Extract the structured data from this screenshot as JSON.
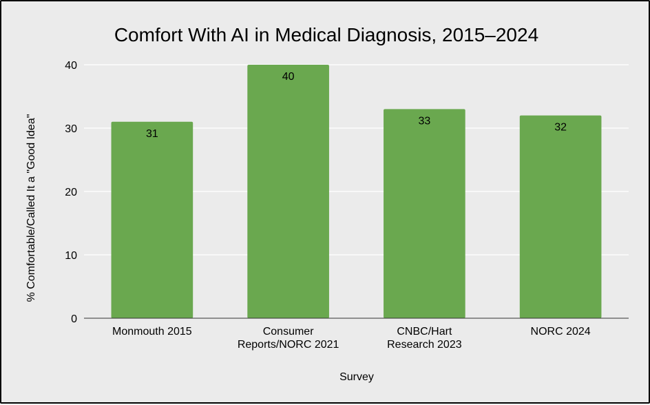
{
  "chart_data": {
    "type": "bar",
    "title": "Comfort With AI in Medical Diagnosis, 2015–2024",
    "xlabel": "Survey",
    "ylabel": "% Comfortable/Called It a \"Good Idea\"",
    "categories": [
      [
        "Monmouth 2015"
      ],
      [
        "Consumer",
        "Reports/NORC 2021"
      ],
      [
        "CNBC/Hart",
        "Research 2023"
      ],
      [
        "NORC 2024"
      ]
    ],
    "values": [
      31,
      40,
      33,
      32
    ],
    "data_labels": [
      "31",
      "40",
      "33",
      "32"
    ],
    "ylim": [
      0,
      40
    ],
    "yticks": [
      0,
      10,
      20,
      30,
      40
    ],
    "grid": true,
    "legend": "none",
    "bar_color": "#6aa84f",
    "background_color": "#ebebeb",
    "grid_color": "#ffffff"
  }
}
